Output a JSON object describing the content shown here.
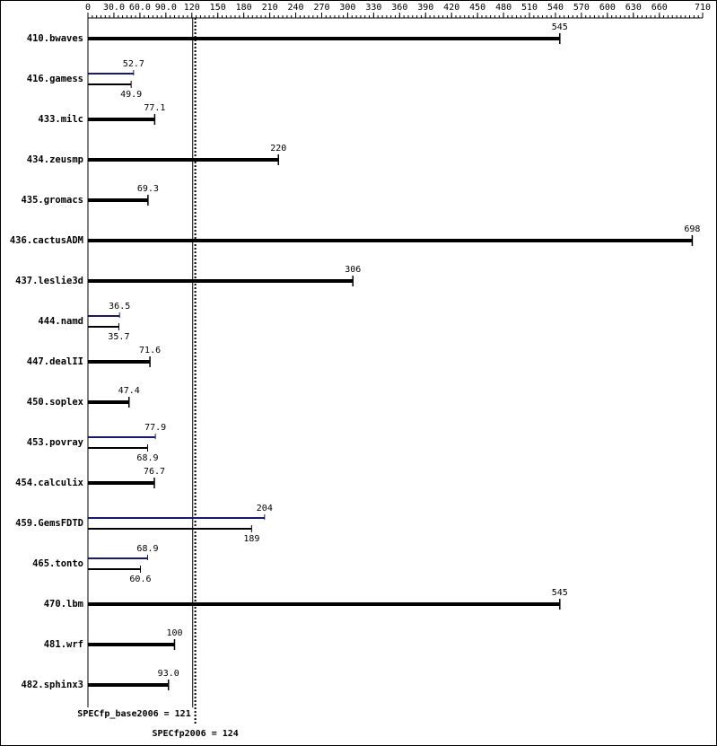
{
  "chart_data": {
    "type": "bar",
    "categories": [
      "410.bwaves",
      "416.gamess",
      "433.milc",
      "434.zeusmp",
      "435.gromacs",
      "436.cactusADM",
      "437.leslie3d",
      "444.namd",
      "447.dealII",
      "450.soplex",
      "453.povray",
      "454.calculix",
      "459.GemsFDTD",
      "465.tonto",
      "470.lbm",
      "481.wrf",
      "482.sphinx3"
    ],
    "series": [
      {
        "color": "#000000",
        "values": [
          545,
          49.9,
          77.1,
          220,
          69.3,
          698,
          306,
          35.7,
          71.6,
          47.4,
          68.9,
          76.7,
          189,
          60.6,
          545,
          100,
          93
        ],
        "value_labels": [
          "545",
          "49.9",
          "77.1",
          "220",
          "69.3",
          "698",
          "306",
          "35.7",
          "71.6",
          "47.4",
          "68.9",
          "76.7",
          "189",
          "60.6",
          "545",
          "100",
          "93.0"
        ]
      },
      {
        "color": "#191970",
        "values": [
          null,
          52.7,
          null,
          null,
          null,
          null,
          null,
          36.5,
          null,
          null,
          77.9,
          null,
          204,
          68.9,
          null,
          null,
          null
        ]
      }
    ],
    "xlim": [
      0,
      710
    ],
    "xticks": [
      0,
      {
        "value": 30,
        "label": "30.0"
      },
      {
        "value": 60,
        "label": "60.0"
      },
      {
        "value": 90,
        "label": "90.0"
      },
      120,
      150,
      180,
      210,
      240,
      270,
      300,
      330,
      360,
      390,
      420,
      450,
      480,
      510,
      540,
      570,
      600,
      630,
      660,
      710
    ],
    "reference_lines": [
      {
        "label": "SPECfp_base2006 = 121",
        "value": 121,
        "color": "#000000",
        "style": "solid"
      },
      {
        "label": "SPECfp2006 = 124",
        "value": 124,
        "color": "#191970",
        "style": "dotted"
      }
    ]
  }
}
